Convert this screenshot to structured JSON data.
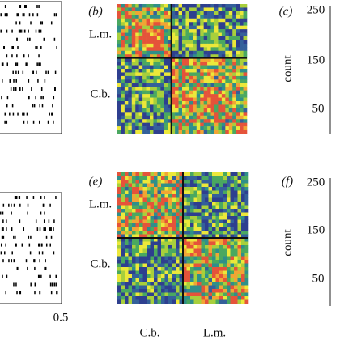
{
  "panels": [
    {
      "label": "(b)",
      "row_labels": [
        "L.m.",
        "C.b."
      ]
    },
    {
      "label": "(c)",
      "axis_title": "count",
      "ticks": [
        "250",
        "150",
        "50"
      ]
    },
    {
      "label": "(e)",
      "row_labels": [
        "L.m.",
        "C.b."
      ],
      "col_labels": [
        "C.b.",
        "L.m."
      ]
    },
    {
      "label": "(f)",
      "axis_title": "count",
      "ticks": [
        "250",
        "150",
        "50"
      ]
    }
  ],
  "raster_axis_label": "0.5"
}
